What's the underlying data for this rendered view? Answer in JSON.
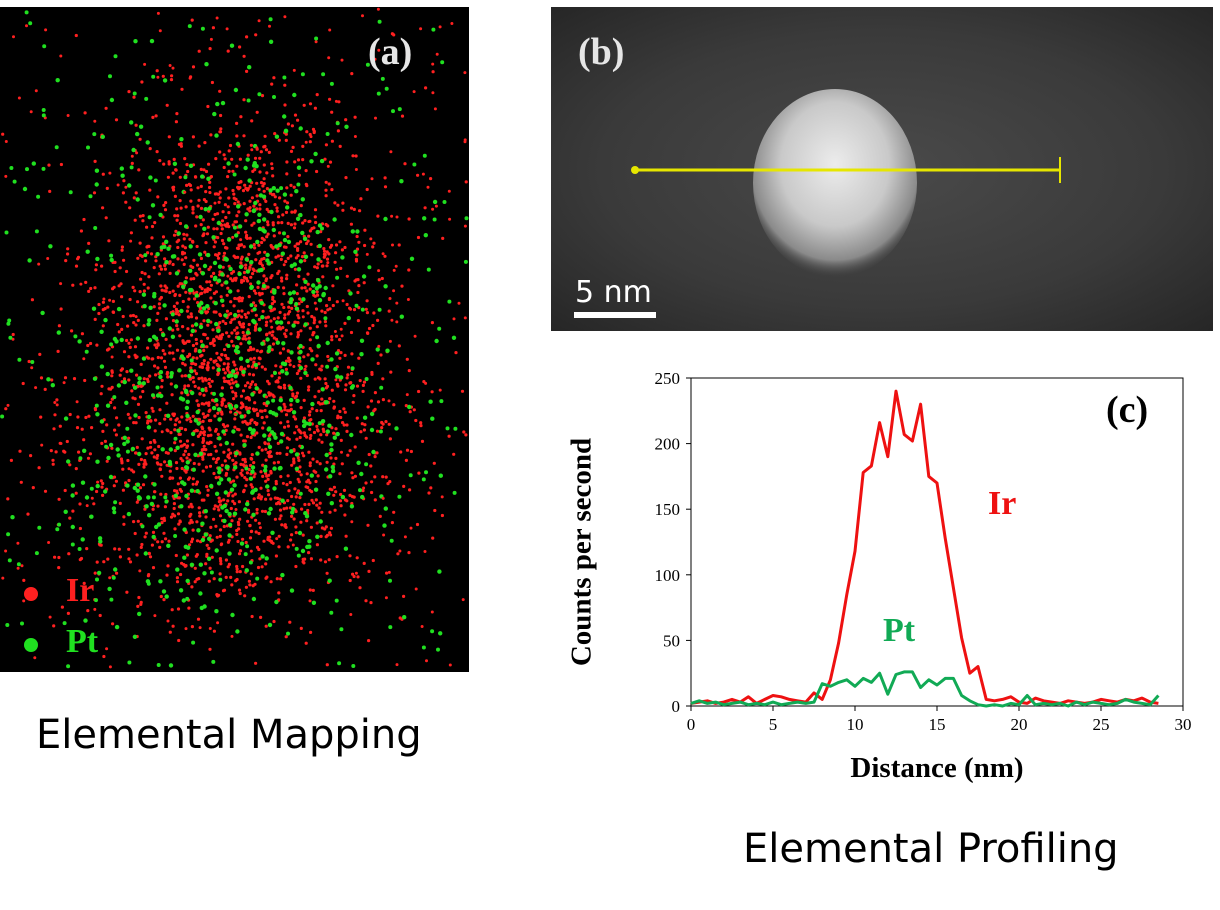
{
  "panel_a": {
    "letter": "(a)",
    "legend": [
      {
        "label": "Ir",
        "color": "#ff2020"
      },
      {
        "label": "Pt",
        "color": "#20e020"
      }
    ],
    "caption": "Elemental Mapping"
  },
  "panel_b": {
    "letter": "(b)",
    "scale_bar_label": "5 nm",
    "line_color": "#e6e600"
  },
  "panel_c": {
    "letter": "(c)",
    "caption": "Elemental Profiling"
  },
  "chart_data": {
    "type": "line",
    "xlabel": "Distance (nm)",
    "ylabel": "Counts per second",
    "xlim": [
      0,
      30
    ],
    "ylim": [
      0,
      250
    ],
    "xticks": [
      0,
      5,
      10,
      15,
      20,
      25,
      30
    ],
    "yticks": [
      0,
      50,
      100,
      150,
      200,
      250
    ],
    "grid": false,
    "series": [
      {
        "name": "Ir",
        "color": "#ee1111",
        "x": [
          0,
          0.5,
          1,
          1.5,
          2,
          2.5,
          3,
          3.5,
          4,
          4.5,
          5,
          5.5,
          6,
          6.5,
          7,
          7.5,
          8,
          8.5,
          9,
          9.5,
          10,
          10.5,
          11,
          11.5,
          12,
          12.5,
          13,
          13.5,
          14,
          14.5,
          15,
          15.5,
          16,
          16.5,
          17,
          17.5,
          18,
          18.5,
          19,
          19.5,
          20,
          20.5,
          21,
          21.5,
          22,
          22.5,
          23,
          23.5,
          24,
          24.5,
          25,
          25.5,
          26,
          26.5,
          27,
          27.5,
          28,
          28.5
        ],
        "values": [
          2,
          3,
          4,
          2,
          3,
          5,
          3,
          7,
          2,
          5,
          8,
          7,
          5,
          4,
          3,
          10,
          5,
          20,
          48,
          85,
          118,
          178,
          183,
          216,
          190,
          240,
          207,
          202,
          230,
          175,
          170,
          128,
          90,
          52,
          25,
          30,
          5,
          4,
          5,
          7,
          3,
          2,
          6,
          4,
          3,
          2,
          4,
          3,
          2,
          3,
          5,
          4,
          3,
          5,
          4,
          6,
          3,
          2
        ]
      },
      {
        "name": "Pt",
        "color": "#11aa55",
        "x": [
          0,
          0.5,
          1,
          1.5,
          2,
          2.5,
          3,
          3.5,
          4,
          4.5,
          5,
          5.5,
          6,
          6.5,
          7,
          7.5,
          8,
          8.5,
          9,
          9.5,
          10,
          10.5,
          11,
          11.5,
          12,
          12.5,
          13,
          13.5,
          14,
          14.5,
          15,
          15.5,
          16,
          16.5,
          17,
          17.5,
          18,
          18.5,
          19,
          19.5,
          20,
          20.5,
          21,
          21.5,
          22,
          22.5,
          23,
          23.5,
          24,
          24.5,
          25,
          25.5,
          26,
          26.5,
          27,
          27.5,
          28,
          28.5
        ],
        "values": [
          2,
          4,
          2,
          3,
          1,
          2,
          3,
          1,
          2,
          1,
          3,
          1,
          2,
          3,
          2,
          3,
          17,
          15,
          18,
          20,
          15,
          21,
          18,
          25,
          9,
          24,
          26,
          26,
          14,
          20,
          16,
          21,
          21,
          8,
          4,
          1,
          0,
          1,
          0,
          2,
          1,
          8,
          1,
          2,
          1,
          2,
          0,
          3,
          1,
          3,
          2,
          1,
          2,
          5,
          3,
          2,
          1,
          8
        ]
      }
    ]
  }
}
